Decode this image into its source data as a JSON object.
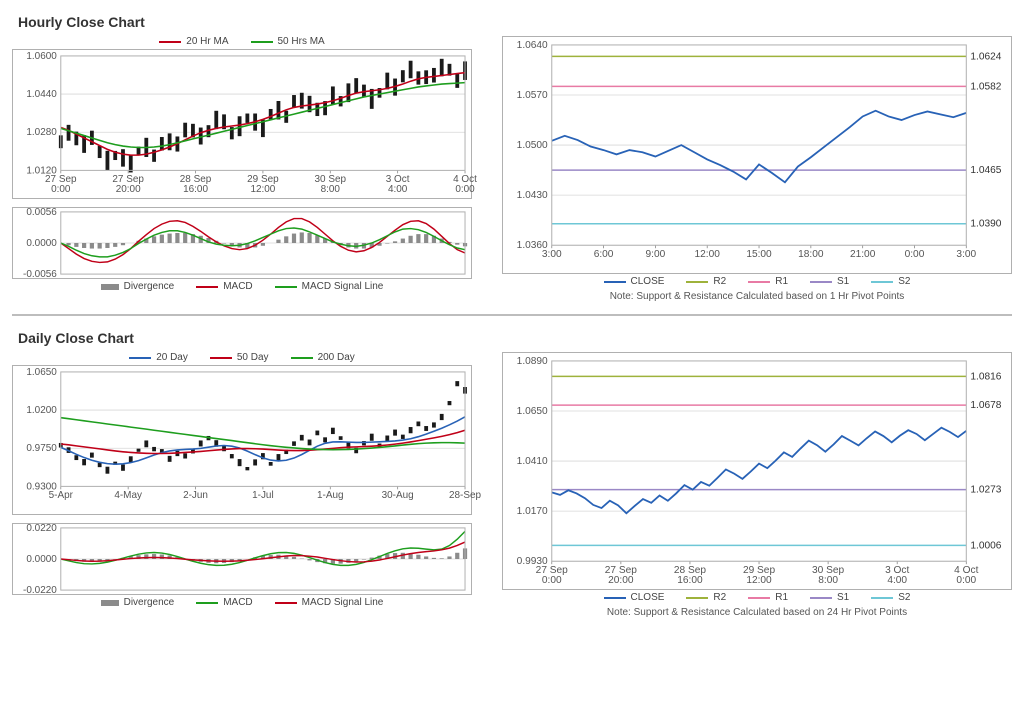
{
  "colors": {
    "red": "#c00018",
    "green": "#1e9e1e",
    "blue": "#2862b6",
    "black": "#1a1a1a",
    "grey": "#8b8b8b",
    "olive": "#9eb23b",
    "pink": "#e87aa4",
    "violet": "#9a88c6",
    "cyan": "#6ec7d6",
    "border": "#b0b0b0",
    "grid": "#d7d7d7",
    "text": "#555555",
    "bg": "#ffffff"
  },
  "hourly": {
    "title": "Hourly Close Chart",
    "main": {
      "type": "line+candles",
      "ylim": [
        1.012,
        1.06
      ],
      "yticks": [
        1.012,
        1.028,
        1.044,
        1.06
      ],
      "yticklabels": [
        "1.0120",
        "1.0280",
        "1.0440",
        "1.0600"
      ],
      "xticklabels": [
        "27 Sep\n0:00",
        "27 Sep\n20:00",
        "28 Sep\n16:00",
        "29 Sep\n12:00",
        "30 Sep\n8:00",
        "3 Oct\n4:00",
        "4 Oct\n0:00"
      ],
      "legend": [
        {
          "label": "20 Hr MA",
          "color": "#c00018"
        },
        {
          "label": "50 Hrs MA",
          "color": "#1e9e1e"
        }
      ],
      "price": [
        1.0255,
        1.027,
        1.0255,
        1.0235,
        1.0248,
        1.0205,
        1.016,
        1.018,
        1.0172,
        1.015,
        1.0195,
        1.0215,
        1.0192,
        1.022,
        1.0245,
        1.0232,
        1.028,
        1.03,
        1.0258,
        1.0285,
        1.0335,
        1.0318,
        1.028,
        1.0305,
        1.034,
        1.032,
        1.03,
        1.035,
        1.037,
        1.0358,
        1.0395,
        1.0418,
        1.04,
        1.0365,
        1.0392,
        1.043,
        1.041,
        1.0448,
        1.0472,
        1.0455,
        1.042,
        1.045,
        1.049,
        1.0475,
        1.051,
        1.054,
        1.052,
        1.0498,
        1.0525,
        1.0553,
        1.053,
        1.0505,
        1.0535
      ],
      "ma20": [
        1.03,
        1.0288,
        1.0272,
        1.0256,
        1.024,
        1.0224,
        1.0208,
        1.0196,
        1.0188,
        1.0184,
        1.0184,
        1.0188,
        1.0196,
        1.0206,
        1.0218,
        1.0232,
        1.0248,
        1.0264,
        1.0278,
        1.0288,
        1.0296,
        1.0302,
        1.0306,
        1.031,
        1.0316,
        1.0324,
        1.0334,
        1.0346,
        1.036,
        1.0374,
        1.0384,
        1.039,
        1.0394,
        1.0398,
        1.0404,
        1.0412,
        1.0422,
        1.0434,
        1.0444,
        1.045,
        1.0454,
        1.0458,
        1.0464,
        1.0472,
        1.0482,
        1.0494,
        1.0504,
        1.051,
        1.0514,
        1.0518,
        1.0522,
        1.0526,
        1.053
      ],
      "ma50": [
        1.0296,
        1.0286,
        1.0276,
        1.0266,
        1.0256,
        1.0246,
        1.0236,
        1.0228,
        1.0222,
        1.0218,
        1.0216,
        1.0216,
        1.0218,
        1.0222,
        1.0228,
        1.0236,
        1.0244,
        1.0252,
        1.026,
        1.0268,
        1.0276,
        1.0284,
        1.0292,
        1.03,
        1.0308,
        1.0316,
        1.0324,
        1.0332,
        1.034,
        1.0348,
        1.0356,
        1.0364,
        1.0372,
        1.038,
        1.0388,
        1.0396,
        1.0404,
        1.0412,
        1.042,
        1.0428,
        1.0434,
        1.044,
        1.0446,
        1.0452,
        1.0458,
        1.0464,
        1.047,
        1.0474,
        1.0478,
        1.0482,
        1.0484,
        1.0486,
        1.0488
      ]
    },
    "macd": {
      "type": "macd",
      "ylim": [
        -0.0056,
        0.0056
      ],
      "yticks": [
        -0.0056,
        0.0,
        0.0056
      ],
      "yticklabels": [
        "-0.0056",
        "0.0000",
        "0.0056"
      ],
      "legend": [
        {
          "label": "Divergence",
          "color": "#8b8b8b",
          "bar": true
        },
        {
          "label": "MACD",
          "color": "#c00018"
        },
        {
          "label": "MACD Signal Line",
          "color": "#1e9e1e"
        }
      ],
      "hist": [
        0.0,
        -0.0004,
        -0.0007,
        -0.0009,
        -0.001,
        -0.001,
        -0.0009,
        -0.0007,
        -0.0004,
        0.0,
        0.0004,
        0.0008,
        0.0012,
        0.0015,
        0.0017,
        0.0018,
        0.0018,
        0.0016,
        0.0013,
        0.0009,
        0.0004,
        -0.0001,
        -0.0005,
        -0.0008,
        -0.0009,
        -0.0008,
        -0.0005,
        0.0,
        0.0006,
        0.0012,
        0.0017,
        0.0019,
        0.0018,
        0.0014,
        0.0008,
        0.0002,
        -0.0004,
        -0.0008,
        -0.001,
        -0.001,
        -0.0008,
        -0.0005,
        -0.0001,
        0.0003,
        0.0008,
        0.0013,
        0.0016,
        0.0016,
        0.0013,
        0.0008,
        0.0002,
        -0.0003,
        -0.0006
      ],
      "macd": [
        0.0,
        -0.001,
        -0.002,
        -0.0028,
        -0.0033,
        -0.0035,
        -0.0034,
        -0.0029,
        -0.0021,
        -0.001,
        0.0003,
        0.0015,
        0.0026,
        0.0034,
        0.0039,
        0.004,
        0.0037,
        0.003,
        0.0021,
        0.0011,
        0.0002,
        -0.0005,
        -0.001,
        -0.0012,
        -0.001,
        -0.0004,
        0.0005,
        0.0016,
        0.0028,
        0.0038,
        0.0044,
        0.0044,
        0.0038,
        0.0028,
        0.0016,
        0.0004,
        -0.0006,
        -0.0013,
        -0.0016,
        -0.0014,
        -0.0008,
        0.0001,
        0.0012,
        0.0023,
        0.0033,
        0.0039,
        0.004,
        0.0035,
        0.0025,
        0.0012,
        -0.0001,
        -0.0012,
        -0.0018
      ],
      "signal": [
        0.0,
        -0.0006,
        -0.0013,
        -0.0019,
        -0.0023,
        -0.0025,
        -0.0025,
        -0.0022,
        -0.0017,
        -0.001,
        -0.0001,
        0.0007,
        0.0014,
        0.0019,
        0.0022,
        0.0022,
        0.0019,
        0.0014,
        0.0008,
        0.0002,
        -0.0002,
        -0.0004,
        -0.0005,
        -0.0004,
        -0.0001,
        0.0004,
        0.001,
        0.0016,
        0.0022,
        0.0026,
        0.0027,
        0.0025,
        0.002,
        0.0014,
        0.0008,
        0.0002,
        -0.0002,
        -0.0005,
        -0.0006,
        -0.0004,
        0.0,
        0.0006,
        0.0013,
        0.002,
        0.0025,
        0.0026,
        0.0024,
        0.0019,
        0.0012,
        0.0004,
        -0.0003,
        -0.0009,
        -0.0012
      ]
    },
    "sr": {
      "type": "support-resistance",
      "ylim": [
        1.036,
        1.064
      ],
      "yticks": [
        1.036,
        1.043,
        1.05,
        1.057,
        1.064
      ],
      "yticklabels": [
        "1.0360",
        "1.0430",
        "1.0500",
        "1.0570",
        "1.0640"
      ],
      "xticklabels": [
        "3:00",
        "6:00",
        "9:00",
        "12:00",
        "15:00",
        "18:00",
        "21:00",
        "0:00",
        "3:00"
      ],
      "legend": [
        {
          "label": "CLOSE",
          "color": "#2862b6"
        },
        {
          "label": "R2",
          "color": "#9eb23b"
        },
        {
          "label": "R1",
          "color": "#e87aa4"
        },
        {
          "label": "S1",
          "color": "#9a88c6"
        },
        {
          "label": "S2",
          "color": "#6ec7d6"
        }
      ],
      "levels": {
        "R2": 1.0624,
        "R1": 1.0582,
        "S1": 1.0465,
        "S2": 1.039
      },
      "close": [
        1.0506,
        1.0513,
        1.0507,
        1.0498,
        1.0493,
        1.0487,
        1.0493,
        1.049,
        1.0484,
        1.0492,
        1.05,
        1.049,
        1.048,
        1.0472,
        1.0463,
        1.0452,
        1.0473,
        1.0461,
        1.0448,
        1.047,
        1.0483,
        1.0497,
        1.0511,
        1.0525,
        1.054,
        1.0548,
        1.054,
        1.0535,
        1.0542,
        1.0547,
        1.0543,
        1.0539,
        1.0545
      ],
      "note": "Note: Support & Resistance Calculated based on 1 Hr Pivot Points"
    }
  },
  "daily": {
    "title": "Daily Close Chart",
    "main": {
      "type": "line+candles",
      "ylim": [
        0.93,
        1.065
      ],
      "yticks": [
        0.93,
        0.975,
        1.02,
        1.065
      ],
      "yticklabels": [
        "0.9300",
        "0.9750",
        "1.0200",
        "1.0650"
      ],
      "xticklabels": [
        "5-Apr",
        "4-May",
        "2-Jun",
        "1-Jul",
        "1-Aug",
        "30-Aug",
        "28-Sep"
      ],
      "legend": [
        {
          "label": "20 Day",
          "color": "#2862b6"
        },
        {
          "label": "50 Day",
          "color": "#c00018"
        },
        {
          "label": "200 Day",
          "color": "#1e9e1e"
        }
      ],
      "price": [
        0.98,
        0.972,
        0.964,
        0.959,
        0.966,
        0.956,
        0.949,
        0.957,
        0.952,
        0.962,
        0.972,
        0.98,
        0.975,
        0.97,
        0.963,
        0.969,
        0.965,
        0.973,
        0.98,
        0.987,
        0.981,
        0.974,
        0.966,
        0.958,
        0.951,
        0.958,
        0.966,
        0.956,
        0.964,
        0.972,
        0.979,
        0.988,
        0.982,
        0.992,
        0.986,
        0.995,
        0.987,
        0.979,
        0.972,
        0.981,
        0.988,
        0.979,
        0.986,
        0.994,
        0.988,
        0.996,
        1.005,
        0.997,
        1.003,
        1.012,
        1.027,
        1.052,
        1.043
      ],
      "ma20": [
        0.976,
        0.972,
        0.9678,
        0.964,
        0.9608,
        0.9584,
        0.9568,
        0.9562,
        0.9566,
        0.958,
        0.9604,
        0.9636,
        0.967,
        0.9698,
        0.9718,
        0.973,
        0.9736,
        0.974,
        0.9748,
        0.9762,
        0.9776,
        0.9782,
        0.9774,
        0.9752,
        0.9716,
        0.9674,
        0.9636,
        0.961,
        0.96,
        0.9608,
        0.9634,
        0.9676,
        0.9726,
        0.9774,
        0.9808,
        0.9824,
        0.9826,
        0.9822,
        0.9818,
        0.9818,
        0.9822,
        0.9826,
        0.983,
        0.9836,
        0.9846,
        0.9862,
        0.9886,
        0.9916,
        0.995,
        0.9986,
        1.0026,
        1.007,
        1.012
      ],
      "ma50": [
        0.98,
        0.979,
        0.9778,
        0.9766,
        0.9754,
        0.9742,
        0.973,
        0.9718,
        0.9708,
        0.97,
        0.9694,
        0.969,
        0.9688,
        0.9688,
        0.969,
        0.9694,
        0.97,
        0.9706,
        0.9712,
        0.972,
        0.9728,
        0.9736,
        0.9742,
        0.9746,
        0.9746,
        0.9744,
        0.974,
        0.9734,
        0.9728,
        0.9724,
        0.9722,
        0.9722,
        0.9726,
        0.9732,
        0.974,
        0.9748,
        0.9756,
        0.9762,
        0.9766,
        0.977,
        0.9774,
        0.978,
        0.9788,
        0.9798,
        0.981,
        0.9824,
        0.984,
        0.9856,
        0.9872,
        0.989,
        0.991,
        0.9934,
        0.9962
      ],
      "ma200": [
        1.011,
        1.0098,
        1.0086,
        1.0073,
        1.0061,
        1.0049,
        1.0036,
        1.0024,
        1.0012,
        0.9999,
        0.9987,
        0.9975,
        0.9962,
        0.995,
        0.9938,
        0.9925,
        0.9913,
        0.9901,
        0.9889,
        0.9876,
        0.9864,
        0.9852,
        0.984,
        0.9827,
        0.9815,
        0.9803,
        0.9791,
        0.978,
        0.977,
        0.9761,
        0.9753,
        0.9746,
        0.974,
        0.9736,
        0.9734,
        0.9733,
        0.9734,
        0.9736,
        0.974,
        0.9745,
        0.9752,
        0.9759,
        0.9768,
        0.9777,
        0.9787,
        0.9796,
        0.9804,
        0.981,
        0.9814,
        0.9816,
        0.9816,
        0.9814,
        0.981
      ]
    },
    "macd": {
      "type": "macd",
      "ylim": [
        -0.022,
        0.022
      ],
      "yticks": [
        -0.022,
        0.0,
        0.022
      ],
      "yticklabels": [
        "-0.0220",
        "0.0000",
        "0.0220"
      ],
      "legend": [
        {
          "label": "Divergence",
          "color": "#8b8b8b",
          "bar": true
        },
        {
          "label": "MACD",
          "color": "#1e9e1e"
        },
        {
          "label": "MACD Signal Line",
          "color": "#c00018"
        }
      ],
      "hist": [
        0.0,
        -0.0008,
        -0.0015,
        -0.0019,
        -0.0019,
        -0.0016,
        -0.001,
        -0.0002,
        0.0008,
        0.0018,
        0.0027,
        0.0033,
        0.0035,
        0.0032,
        0.0025,
        0.0014,
        0.0002,
        -0.001,
        -0.002,
        -0.0027,
        -0.003,
        -0.0028,
        -0.0022,
        -0.0012,
        0.0,
        0.0012,
        0.0022,
        0.0028,
        0.003,
        0.0025,
        0.0015,
        0.0003,
        -0.001,
        -0.0022,
        -0.003,
        -0.0034,
        -0.0033,
        -0.0027,
        -0.0017,
        -0.0004,
        0.001,
        0.0024,
        0.0035,
        0.0042,
        0.0044,
        0.004,
        0.003,
        0.0018,
        0.0008,
        0.0005,
        0.0018,
        0.0044,
        0.0075
      ],
      "macd": [
        0.0,
        -0.0013,
        -0.0025,
        -0.0033,
        -0.0035,
        -0.0031,
        -0.0022,
        -0.0009,
        0.0006,
        0.0021,
        0.0034,
        0.0043,
        0.0046,
        0.0042,
        0.0032,
        0.0017,
        0.0,
        -0.0016,
        -0.003,
        -0.004,
        -0.0045,
        -0.0044,
        -0.0037,
        -0.0025,
        -0.0009,
        0.0008,
        0.0024,
        0.0037,
        0.0045,
        0.0046,
        0.004,
        0.0027,
        0.001,
        -0.0008,
        -0.0025,
        -0.0038,
        -0.0045,
        -0.0045,
        -0.0038,
        -0.0024,
        -0.0005,
        0.0017,
        0.0039,
        0.0058,
        0.0072,
        0.0078,
        0.0076,
        0.007,
        0.0065,
        0.007,
        0.0095,
        0.014,
        0.0195
      ],
      "signal": [
        0.0,
        -0.0005,
        -0.001,
        -0.0014,
        -0.0016,
        -0.0015,
        -0.0012,
        -0.0007,
        -0.0002,
        0.0003,
        0.0007,
        0.001,
        0.0011,
        0.001,
        0.0007,
        0.0003,
        -0.0002,
        -0.0006,
        -0.001,
        -0.0013,
        -0.0015,
        -0.0016,
        -0.0015,
        -0.0013,
        -0.0009,
        -0.0004,
        0.0002,
        0.0009,
        0.0015,
        0.0021,
        0.0025,
        0.0024,
        0.002,
        0.0014,
        0.0005,
        -0.0004,
        -0.0012,
        -0.0018,
        -0.0021,
        -0.002,
        -0.0015,
        -0.0007,
        0.0004,
        0.0016,
        0.0028,
        0.0038,
        0.0046,
        0.0052,
        0.0057,
        0.0065,
        0.0077,
        0.0096,
        0.012
      ]
    },
    "sr": {
      "type": "support-resistance",
      "ylim": [
        0.993,
        1.089
      ],
      "yticks": [
        0.993,
        1.017,
        1.041,
        1.065,
        1.089
      ],
      "yticklabels": [
        "0.9930",
        "1.0170",
        "1.0410",
        "1.0650",
        "1.0890"
      ],
      "xticklabels": [
        "27 Sep\n0:00",
        "27 Sep\n20:00",
        "28 Sep\n16:00",
        "29 Sep\n12:00",
        "30 Sep\n8:00",
        "3 Oct\n4:00",
        "4 Oct\n0:00"
      ],
      "legend": [
        {
          "label": "CLOSE",
          "color": "#2862b6"
        },
        {
          "label": "R2",
          "color": "#9eb23b"
        },
        {
          "label": "R1",
          "color": "#e87aa4"
        },
        {
          "label": "S1",
          "color": "#9a88c6"
        },
        {
          "label": "S2",
          "color": "#6ec7d6"
        }
      ],
      "levels": {
        "R2": 1.0816,
        "R1": 1.0678,
        "S1": 1.0273,
        "S2": 1.0006
      },
      "close": [
        1.026,
        1.0248,
        1.027,
        1.0255,
        1.0232,
        1.02,
        1.0185,
        1.022,
        1.0198,
        1.016,
        1.0195,
        1.0228,
        1.021,
        1.0245,
        1.022,
        1.0255,
        1.0295,
        1.0273,
        1.031,
        1.0292,
        1.033,
        1.037,
        1.035,
        1.0325,
        1.036,
        1.0398,
        1.0376,
        1.0412,
        1.0452,
        1.043,
        1.047,
        1.0508,
        1.0486,
        1.0455,
        1.049,
        1.053,
        1.0508,
        1.0485,
        1.052,
        1.0552,
        1.053,
        1.05,
        1.0532,
        1.0558,
        1.054,
        1.051,
        1.054,
        1.057,
        1.055,
        1.0525,
        1.0555
      ],
      "note": "Note: Support & Resistance Calculated based on 24 Hr Pivot Points"
    }
  }
}
